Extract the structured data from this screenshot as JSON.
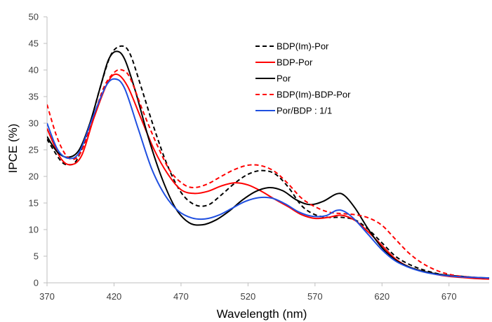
{
  "chart_data": {
    "type": "line",
    "xlabel": "Wavelength (nm)",
    "ylabel": "IPCE (%)",
    "xlim": [
      370,
      700
    ],
    "ylim": [
      0,
      50
    ],
    "x_ticks": [
      "370",
      "420",
      "470",
      "520",
      "570",
      "620",
      "670"
    ],
    "y_ticks": [
      "0",
      "5",
      "10",
      "15",
      "20",
      "25",
      "30",
      "35",
      "40",
      "45",
      "50"
    ],
    "grid": false,
    "legend_position": "top-right",
    "series": [
      {
        "name": "BDP(Im)-Por",
        "color": "#000000",
        "dashed": true,
        "points": [
          [
            370,
            27
          ],
          [
            380,
            23
          ],
          [
            386,
            22.2
          ],
          [
            392,
            23
          ],
          [
            400,
            28
          ],
          [
            410,
            37
          ],
          [
            418,
            43
          ],
          [
            426,
            44.5
          ],
          [
            432,
            43
          ],
          [
            440,
            37
          ],
          [
            450,
            29
          ],
          [
            460,
            22
          ],
          [
            470,
            17
          ],
          [
            480,
            14.7
          ],
          [
            490,
            14.6
          ],
          [
            500,
            16.5
          ],
          [
            510,
            18.7
          ],
          [
            520,
            20.4
          ],
          [
            530,
            21.1
          ],
          [
            540,
            20.5
          ],
          [
            550,
            18
          ],
          [
            560,
            14.5
          ],
          [
            570,
            12.8
          ],
          [
            580,
            12.3
          ],
          [
            590,
            12.3
          ],
          [
            600,
            11.8
          ],
          [
            610,
            10
          ],
          [
            620,
            7.5
          ],
          [
            630,
            5
          ],
          [
            640,
            3.5
          ],
          [
            650,
            2.5
          ],
          [
            660,
            1.8
          ],
          [
            670,
            1.3
          ],
          [
            680,
            1.1
          ],
          [
            690,
            0.9
          ],
          [
            700,
            0.8
          ]
        ]
      },
      {
        "name": "BDP-Por",
        "color": "#ff0000",
        "dashed": false,
        "points": [
          [
            370,
            29
          ],
          [
            380,
            23.5
          ],
          [
            388,
            22.2
          ],
          [
            396,
            24
          ],
          [
            405,
            31
          ],
          [
            415,
            37.5
          ],
          [
            422,
            39.2
          ],
          [
            430,
            37
          ],
          [
            440,
            31
          ],
          [
            450,
            25
          ],
          [
            460,
            20.5
          ],
          [
            470,
            17.5
          ],
          [
            480,
            16.8
          ],
          [
            490,
            17.2
          ],
          [
            500,
            18.2
          ],
          [
            510,
            18.8
          ],
          [
            520,
            18.4
          ],
          [
            530,
            17.2
          ],
          [
            540,
            15.7
          ],
          [
            550,
            14.3
          ],
          [
            560,
            12.8
          ],
          [
            570,
            12.1
          ],
          [
            580,
            12.3
          ],
          [
            590,
            12.7
          ],
          [
            600,
            11.7
          ],
          [
            610,
            9.5
          ],
          [
            620,
            7
          ],
          [
            630,
            4.5
          ],
          [
            640,
            3
          ],
          [
            650,
            2.2
          ],
          [
            660,
            1.6
          ],
          [
            670,
            1.2
          ],
          [
            680,
            1
          ],
          [
            690,
            0.8
          ],
          [
            700,
            0.7
          ]
        ]
      },
      {
        "name": "Por",
        "color": "#000000",
        "dashed": false,
        "points": [
          [
            370,
            27.5
          ],
          [
            378,
            24.5
          ],
          [
            386,
            23.6
          ],
          [
            394,
            25
          ],
          [
            402,
            30
          ],
          [
            410,
            37
          ],
          [
            416,
            42
          ],
          [
            422,
            43.5
          ],
          [
            428,
            42
          ],
          [
            436,
            36
          ],
          [
            446,
            27
          ],
          [
            456,
            19.5
          ],
          [
            466,
            14
          ],
          [
            476,
            11.3
          ],
          [
            486,
            10.9
          ],
          [
            496,
            11.8
          ],
          [
            506,
            13.5
          ],
          [
            516,
            15.6
          ],
          [
            526,
            17.2
          ],
          [
            536,
            17.9
          ],
          [
            546,
            17.3
          ],
          [
            556,
            15.6
          ],
          [
            566,
            14.7
          ],
          [
            576,
            15.3
          ],
          [
            586,
            16.7
          ],
          [
            592,
            16.4
          ],
          [
            600,
            14
          ],
          [
            610,
            10
          ],
          [
            620,
            6.6
          ],
          [
            630,
            4.3
          ],
          [
            640,
            3
          ],
          [
            650,
            2.2
          ],
          [
            660,
            1.7
          ],
          [
            670,
            1.4
          ],
          [
            680,
            1.2
          ],
          [
            690,
            1
          ],
          [
            700,
            0.9
          ]
        ]
      },
      {
        "name": "BDP(Im)-BDP-Por",
        "color": "#ff0000",
        "dashed": true,
        "points": [
          [
            370,
            33.5
          ],
          [
            378,
            27
          ],
          [
            386,
            23.5
          ],
          [
            394,
            24
          ],
          [
            402,
            29
          ],
          [
            412,
            36.5
          ],
          [
            420,
            39.5
          ],
          [
            426,
            40
          ],
          [
            432,
            38.5
          ],
          [
            442,
            32
          ],
          [
            452,
            26
          ],
          [
            462,
            21
          ],
          [
            472,
            18.5
          ],
          [
            480,
            17.9
          ],
          [
            490,
            18.6
          ],
          [
            500,
            20
          ],
          [
            510,
            21.3
          ],
          [
            520,
            22.1
          ],
          [
            530,
            22
          ],
          [
            540,
            20.9
          ],
          [
            550,
            18.6
          ],
          [
            560,
            15.9
          ],
          [
            570,
            14.3
          ],
          [
            580,
            13.3
          ],
          [
            590,
            13
          ],
          [
            600,
            12.8
          ],
          [
            610,
            12.2
          ],
          [
            620,
            10.8
          ],
          [
            630,
            8.2
          ],
          [
            640,
            5.6
          ],
          [
            650,
            3.7
          ],
          [
            660,
            2.4
          ],
          [
            670,
            1.6
          ],
          [
            680,
            1.2
          ],
          [
            690,
            1
          ],
          [
            700,
            0.8
          ]
        ]
      },
      {
        "name": "Por/BDP : 1/1",
        "color": "#1f4fe0",
        "dashed": false,
        "points": [
          [
            370,
            30
          ],
          [
            378,
            25
          ],
          [
            386,
            23.4
          ],
          [
            394,
            24.5
          ],
          [
            404,
            31
          ],
          [
            414,
            37
          ],
          [
            421,
            38.3
          ],
          [
            428,
            36.5
          ],
          [
            438,
            29
          ],
          [
            448,
            21.5
          ],
          [
            458,
            16.5
          ],
          [
            468,
            13.5
          ],
          [
            478,
            12.2
          ],
          [
            488,
            12
          ],
          [
            498,
            12.7
          ],
          [
            508,
            14
          ],
          [
            518,
            15.3
          ],
          [
            528,
            16
          ],
          [
            538,
            15.9
          ],
          [
            548,
            14.8
          ],
          [
            558,
            13.3
          ],
          [
            568,
            12.5
          ],
          [
            578,
            12.6
          ],
          [
            586,
            13.6
          ],
          [
            592,
            13.4
          ],
          [
            600,
            11.8
          ],
          [
            610,
            9
          ],
          [
            620,
            6.2
          ],
          [
            630,
            4.1
          ],
          [
            640,
            2.9
          ],
          [
            650,
            2.1
          ],
          [
            660,
            1.6
          ],
          [
            670,
            1.3
          ],
          [
            680,
            1.1
          ],
          [
            690,
            1
          ],
          [
            700,
            0.9
          ]
        ]
      }
    ]
  }
}
